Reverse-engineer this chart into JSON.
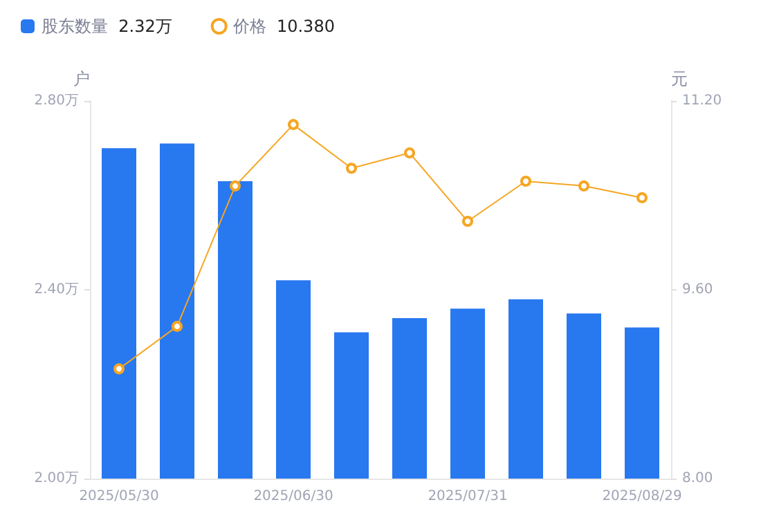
{
  "chart_data": {
    "type": "bar",
    "categories": [
      "2025/05/30",
      null,
      null,
      "2025/06/30",
      null,
      null,
      "2025/07/31",
      null,
      null,
      "2025/08/29"
    ],
    "series": [
      {
        "name": "股东数量 2.32万",
        "color": "#2878f0",
        "values": [
          2.7,
          2.71,
          2.63,
          2.42,
          2.31,
          2.34,
          2.36,
          2.38,
          2.35,
          2.32
        ]
      },
      {
        "name": "价格 10.380",
        "type": "line",
        "axis": "y2",
        "color": "#f5a623",
        "marker": "circle",
        "values": [
          8.93,
          9.29,
          10.48,
          11.0,
          10.63,
          10.76,
          10.18,
          10.52,
          10.48,
          10.38
        ]
      }
    ],
    "ylabel": "户",
    "y2label": "元",
    "ylim": [
      2.0,
      2.8
    ],
    "yticks": [
      {
        "value": 2.0,
        "label": "2.00万"
      },
      {
        "value": 2.4,
        "label": "2.40万"
      },
      {
        "value": 2.8,
        "label": "2.80万"
      }
    ],
    "y2lim": [
      8.0,
      11.2
    ],
    "y2ticks": [
      {
        "value": 8.0,
        "label": "8.00"
      },
      {
        "value": 9.6,
        "label": "9.60"
      },
      {
        "value": 11.2,
        "label": "11.20"
      }
    ],
    "legend": "top left",
    "grid": false
  }
}
